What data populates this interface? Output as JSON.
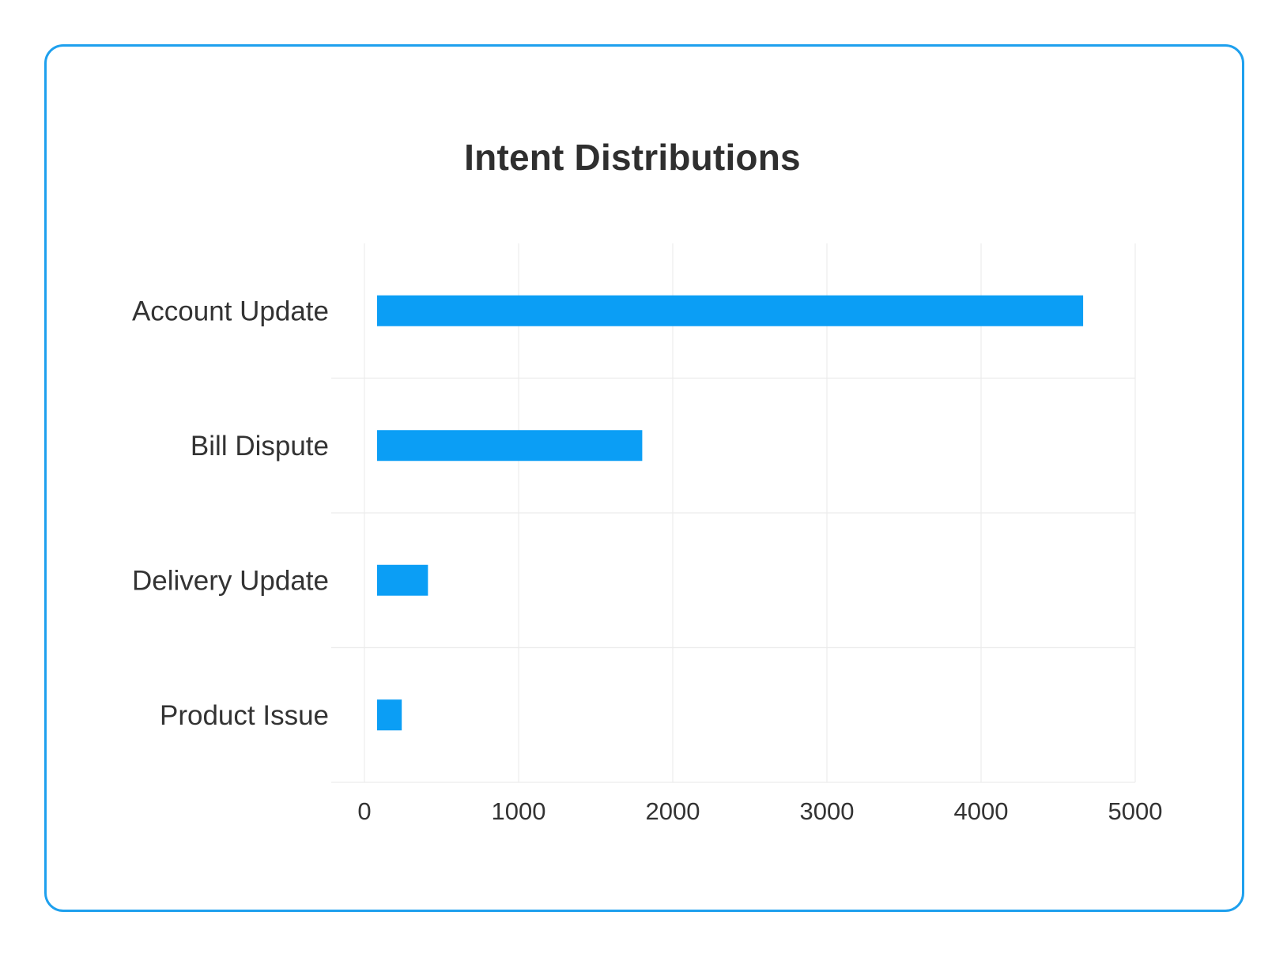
{
  "chart_data": {
    "type": "bar",
    "orientation": "horizontal",
    "title": "Intent Distributions",
    "categories": [
      "Account Update",
      "Bill Dispute",
      "Delivery Update",
      "Product Issue"
    ],
    "values": [
      4580,
      1720,
      330,
      160
    ],
    "xlim": [
      0,
      5000
    ],
    "xticks": [
      "0",
      "1000",
      "2000",
      "3000",
      "4000",
      "5000"
    ],
    "grid": true,
    "bar_color": "#0b9ef5",
    "border_color": "#1ea0ee"
  }
}
